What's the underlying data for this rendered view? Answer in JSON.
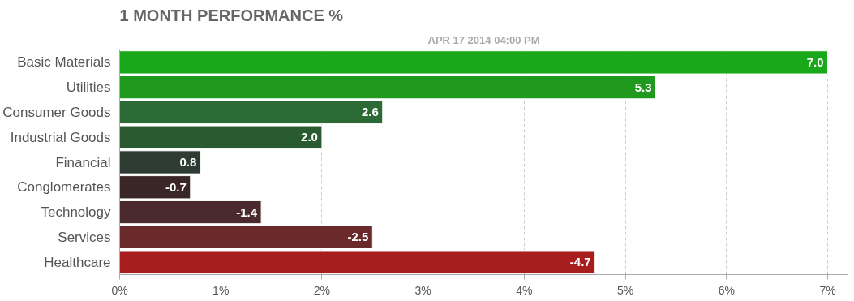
{
  "chart_data": {
    "type": "bar",
    "orientation": "horizontal",
    "title": "1 MONTH PERFORMANCE %",
    "subtitle": "APR 17 2014 04:00 PM",
    "categories": [
      "Basic Materials",
      "Utilities",
      "Consumer Goods",
      "Industrial Goods",
      "Financial",
      "Conglomerates",
      "Technology",
      "Services",
      "Healthcare"
    ],
    "values": [
      7.0,
      5.3,
      2.6,
      2.0,
      0.8,
      -0.7,
      -1.4,
      -2.5,
      -4.7
    ],
    "base": [
      0,
      0,
      0,
      0,
      0,
      0.7,
      1.4,
      2.5,
      4.7
    ],
    "value_labels": [
      "7.0",
      "5.3",
      "2.6",
      "2.0",
      "0.8",
      "-0.7",
      "-1.4",
      "-2.5",
      "-4.7"
    ],
    "colors": [
      "#19a819",
      "#1f9a1f",
      "#2b6a35",
      "#2a5a30",
      "#2e3c33",
      "#3a2627",
      "#4a2a2c",
      "#6a2a2c",
      "#a81d1d"
    ],
    "xlim": [
      0,
      7.2
    ],
    "xticks": [
      {
        "value": 0,
        "label": "0%"
      },
      {
        "value": 1,
        "label": "1%"
      },
      {
        "value": 2,
        "label": "2%"
      },
      {
        "value": 3,
        "label": "3%"
      },
      {
        "value": 4,
        "label": "4%"
      },
      {
        "value": 5,
        "label": "5%"
      },
      {
        "value": 6,
        "label": "6%"
      },
      {
        "value": 7,
        "label": "7%"
      }
    ],
    "grid": "x"
  }
}
